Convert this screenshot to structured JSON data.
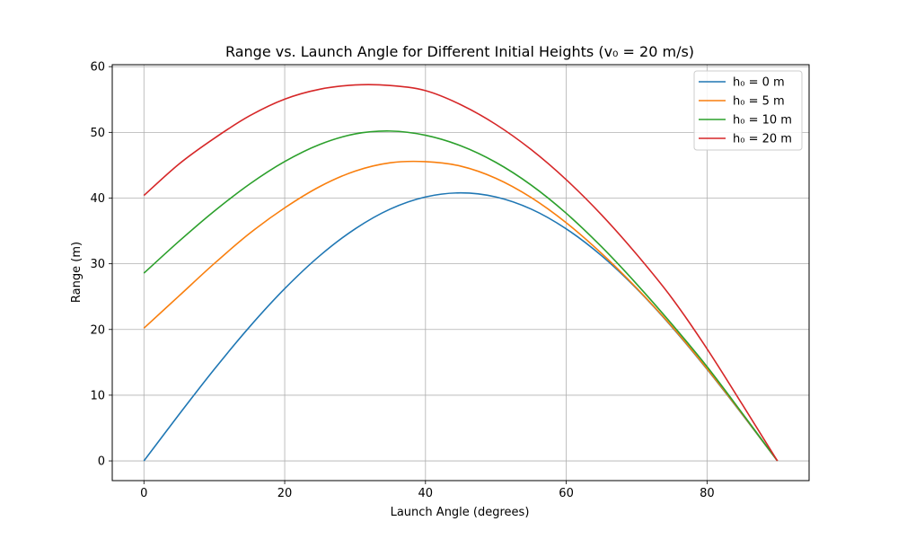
{
  "chart_data": {
    "type": "line",
    "title": "Range vs. Launch Angle for Different Initial Heights (v₀ = 20 m/s)",
    "xlabel": "Launch Angle (degrees)",
    "ylabel": "Range (m)",
    "xlim": [
      -4.5,
      94.5
    ],
    "ylim": [
      -3,
      60.3
    ],
    "xticks": [
      0,
      20,
      40,
      60,
      80
    ],
    "yticks": [
      0,
      10,
      20,
      30,
      40,
      50,
      60
    ],
    "grid": true,
    "legend_position": "top-right",
    "x": [
      0,
      5,
      10,
      15,
      20,
      25,
      30,
      35,
      40,
      45,
      50,
      55,
      60,
      65,
      70,
      75,
      80,
      85,
      90
    ],
    "series": [
      {
        "name": "h₀ = 0 m",
        "color": "#1f77b4",
        "values": [
          0,
          7.08,
          13.95,
          20.39,
          26.21,
          31.24,
          35.31,
          38.33,
          40.17,
          40.79,
          40.17,
          38.33,
          35.31,
          31.24,
          26.21,
          20.39,
          13.95,
          7.08,
          0
        ]
      },
      {
        "name": "h₀ = 5 m",
        "color": "#f97f0e",
        "values": [
          20.2,
          25.12,
          30.04,
          34.61,
          38.51,
          41.76,
          44.1,
          45.37,
          45.54,
          44.86,
          43.01,
          40.09,
          36.24,
          31.59,
          26.3,
          20.47,
          14.02,
          7.14,
          0
        ]
      },
      {
        "name": "h₀ = 10 m",
        "color": "#2ca02c",
        "values": [
          28.57,
          33.44,
          38.01,
          42.12,
          45.56,
          48.17,
          49.76,
          50.2,
          49.56,
          47.96,
          45.43,
          41.99,
          37.68,
          32.6,
          26.92,
          20.82,
          14.35,
          7.26,
          0
        ]
      },
      {
        "name": "h₀ = 20 m",
        "color": "#d62728",
        "values": [
          40.4,
          45.2,
          49.1,
          52.51,
          55.06,
          56.57,
          57.21,
          57.13,
          56.35,
          54.22,
          51.21,
          47.39,
          42.79,
          37.46,
          31.43,
          24.79,
          17.06,
          8.61,
          0
        ]
      }
    ]
  }
}
